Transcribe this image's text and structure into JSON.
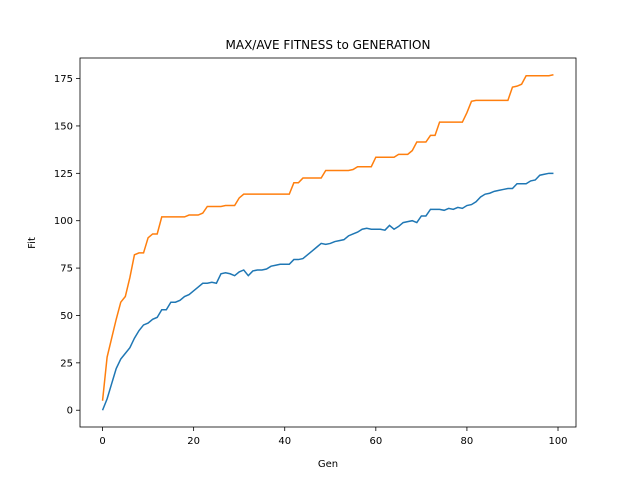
{
  "chart_data": {
    "type": "line",
    "title": "MAX/AVE FITNESS to GENERATION",
    "x_label": "Gen",
    "y_label": "Fit",
    "x": [
      0,
      1,
      2,
      3,
      4,
      5,
      6,
      7,
      8,
      9,
      10,
      11,
      12,
      13,
      14,
      15,
      16,
      17,
      18,
      19,
      20,
      21,
      22,
      23,
      24,
      25,
      26,
      27,
      28,
      29,
      30,
      31,
      32,
      33,
      34,
      35,
      36,
      37,
      38,
      39,
      40,
      41,
      42,
      43,
      44,
      45,
      46,
      47,
      48,
      49,
      50,
      51,
      52,
      53,
      54,
      55,
      56,
      57,
      58,
      59,
      60,
      61,
      62,
      63,
      64,
      65,
      66,
      67,
      68,
      69,
      70,
      71,
      72,
      73,
      74,
      75,
      76,
      77,
      78,
      79,
      80,
      81,
      82,
      83,
      84,
      85,
      86,
      87,
      88,
      89,
      90,
      91,
      92,
      93,
      94,
      95,
      96,
      97,
      98,
      99
    ],
    "series": [
      {
        "color": "#1f77b4",
        "values": [
          0,
          6,
          14,
          22,
          27,
          30,
          33,
          38,
          42,
          45,
          46,
          48,
          49,
          53,
          53,
          57,
          57,
          58,
          60,
          61,
          63,
          65,
          67,
          67,
          67.5,
          67,
          72,
          72.5,
          72,
          71,
          73,
          74,
          71,
          73.5,
          74,
          74,
          74.5,
          76,
          76.5,
          77,
          77,
          77,
          79.5,
          79.5,
          80,
          82,
          84,
          86,
          88,
          87.5,
          88,
          89,
          89.5,
          90,
          92,
          93,
          94,
          95.5,
          96,
          95.5,
          95.5,
          95.5,
          95,
          97.5,
          95.5,
          97,
          99,
          99.5,
          100,
          99,
          102.5,
          102.5,
          106,
          106,
          106,
          105.5,
          106.5,
          106,
          107,
          106.5,
          108,
          108.5,
          110,
          112.5,
          114,
          114.5,
          115.5,
          116,
          116.5,
          117,
          117,
          119.5,
          119.5,
          119.5,
          121,
          121.5,
          124,
          124.5,
          125,
          125
        ]
      },
      {
        "color": "#ff7f0e",
        "values": [
          5,
          28,
          38,
          48,
          57,
          60,
          70,
          82,
          83,
          83,
          91,
          93,
          93,
          102,
          102,
          102,
          102,
          102,
          102,
          103,
          103,
          103,
          104,
          107.5,
          107.5,
          107.5,
          107.5,
          108,
          108,
          108,
          112,
          114,
          114,
          114,
          114,
          114,
          114,
          114,
          114,
          114,
          114,
          114,
          120,
          120,
          122.5,
          122.5,
          122.5,
          122.5,
          122.5,
          126.5,
          126.5,
          126.5,
          126.5,
          126.5,
          126.5,
          127,
          128.5,
          128.5,
          128.5,
          128.5,
          133.5,
          133.5,
          133.5,
          133.5,
          133.5,
          135,
          135,
          135,
          137,
          141.5,
          141.5,
          141.5,
          145,
          145,
          152,
          152,
          152,
          152,
          152,
          152,
          157,
          163,
          163.5,
          163.5,
          163.5,
          163.5,
          163.5,
          163.5,
          163.5,
          163.5,
          170.5,
          171,
          172,
          176.5,
          176.5,
          176.5,
          176.5,
          176.5,
          176.5,
          177
        ]
      }
    ],
    "xlim": [
      -4.95,
      103.95
    ],
    "ylim": [
      -8.85,
      185.85
    ],
    "xticks": [
      0,
      20,
      40,
      60,
      80,
      100
    ],
    "yticks": [
      0,
      25,
      50,
      75,
      100,
      125,
      150,
      175
    ]
  }
}
